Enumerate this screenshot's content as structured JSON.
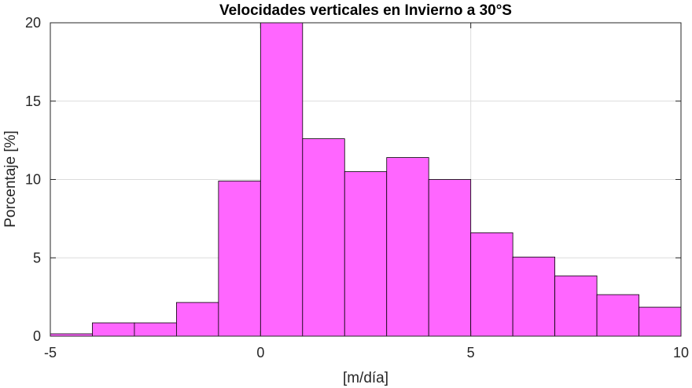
{
  "chart_data": {
    "type": "bar",
    "title": "Velocidades verticales en Invierno a 30°S",
    "xlabel": "[m/día]",
    "ylabel": "Porcentaje [%]",
    "xlim": [
      -5,
      10
    ],
    "ylim": [
      0,
      20
    ],
    "xticks": [
      -5,
      0,
      5,
      10
    ],
    "yticks": [
      0,
      5,
      10,
      15,
      20
    ],
    "grid": true,
    "bar_color": "#ff66ff",
    "bar_edge_color": "#000000",
    "bins": [
      {
        "x0": -5,
        "x1": -4,
        "value": 0.15
      },
      {
        "x0": -4,
        "x1": -3,
        "value": 0.85
      },
      {
        "x0": -3,
        "x1": -2,
        "value": 0.85
      },
      {
        "x0": -2,
        "x1": -1,
        "value": 2.15
      },
      {
        "x0": -1,
        "x1": 0,
        "value": 9.9
      },
      {
        "x0": 0,
        "x1": 1,
        "value": 20.0
      },
      {
        "x0": 1,
        "x1": 2,
        "value": 12.6
      },
      {
        "x0": 2,
        "x1": 3,
        "value": 10.5
      },
      {
        "x0": 3,
        "x1": 4,
        "value": 11.4
      },
      {
        "x0": 4,
        "x1": 5,
        "value": 10.0
      },
      {
        "x0": 5,
        "x1": 6,
        "value": 6.6
      },
      {
        "x0": 6,
        "x1": 7,
        "value": 5.05
      },
      {
        "x0": 7,
        "x1": 8,
        "value": 3.85
      },
      {
        "x0": 8,
        "x1": 9,
        "value": 2.65
      },
      {
        "x0": 9,
        "x1": 10,
        "value": 1.85
      }
    ]
  }
}
